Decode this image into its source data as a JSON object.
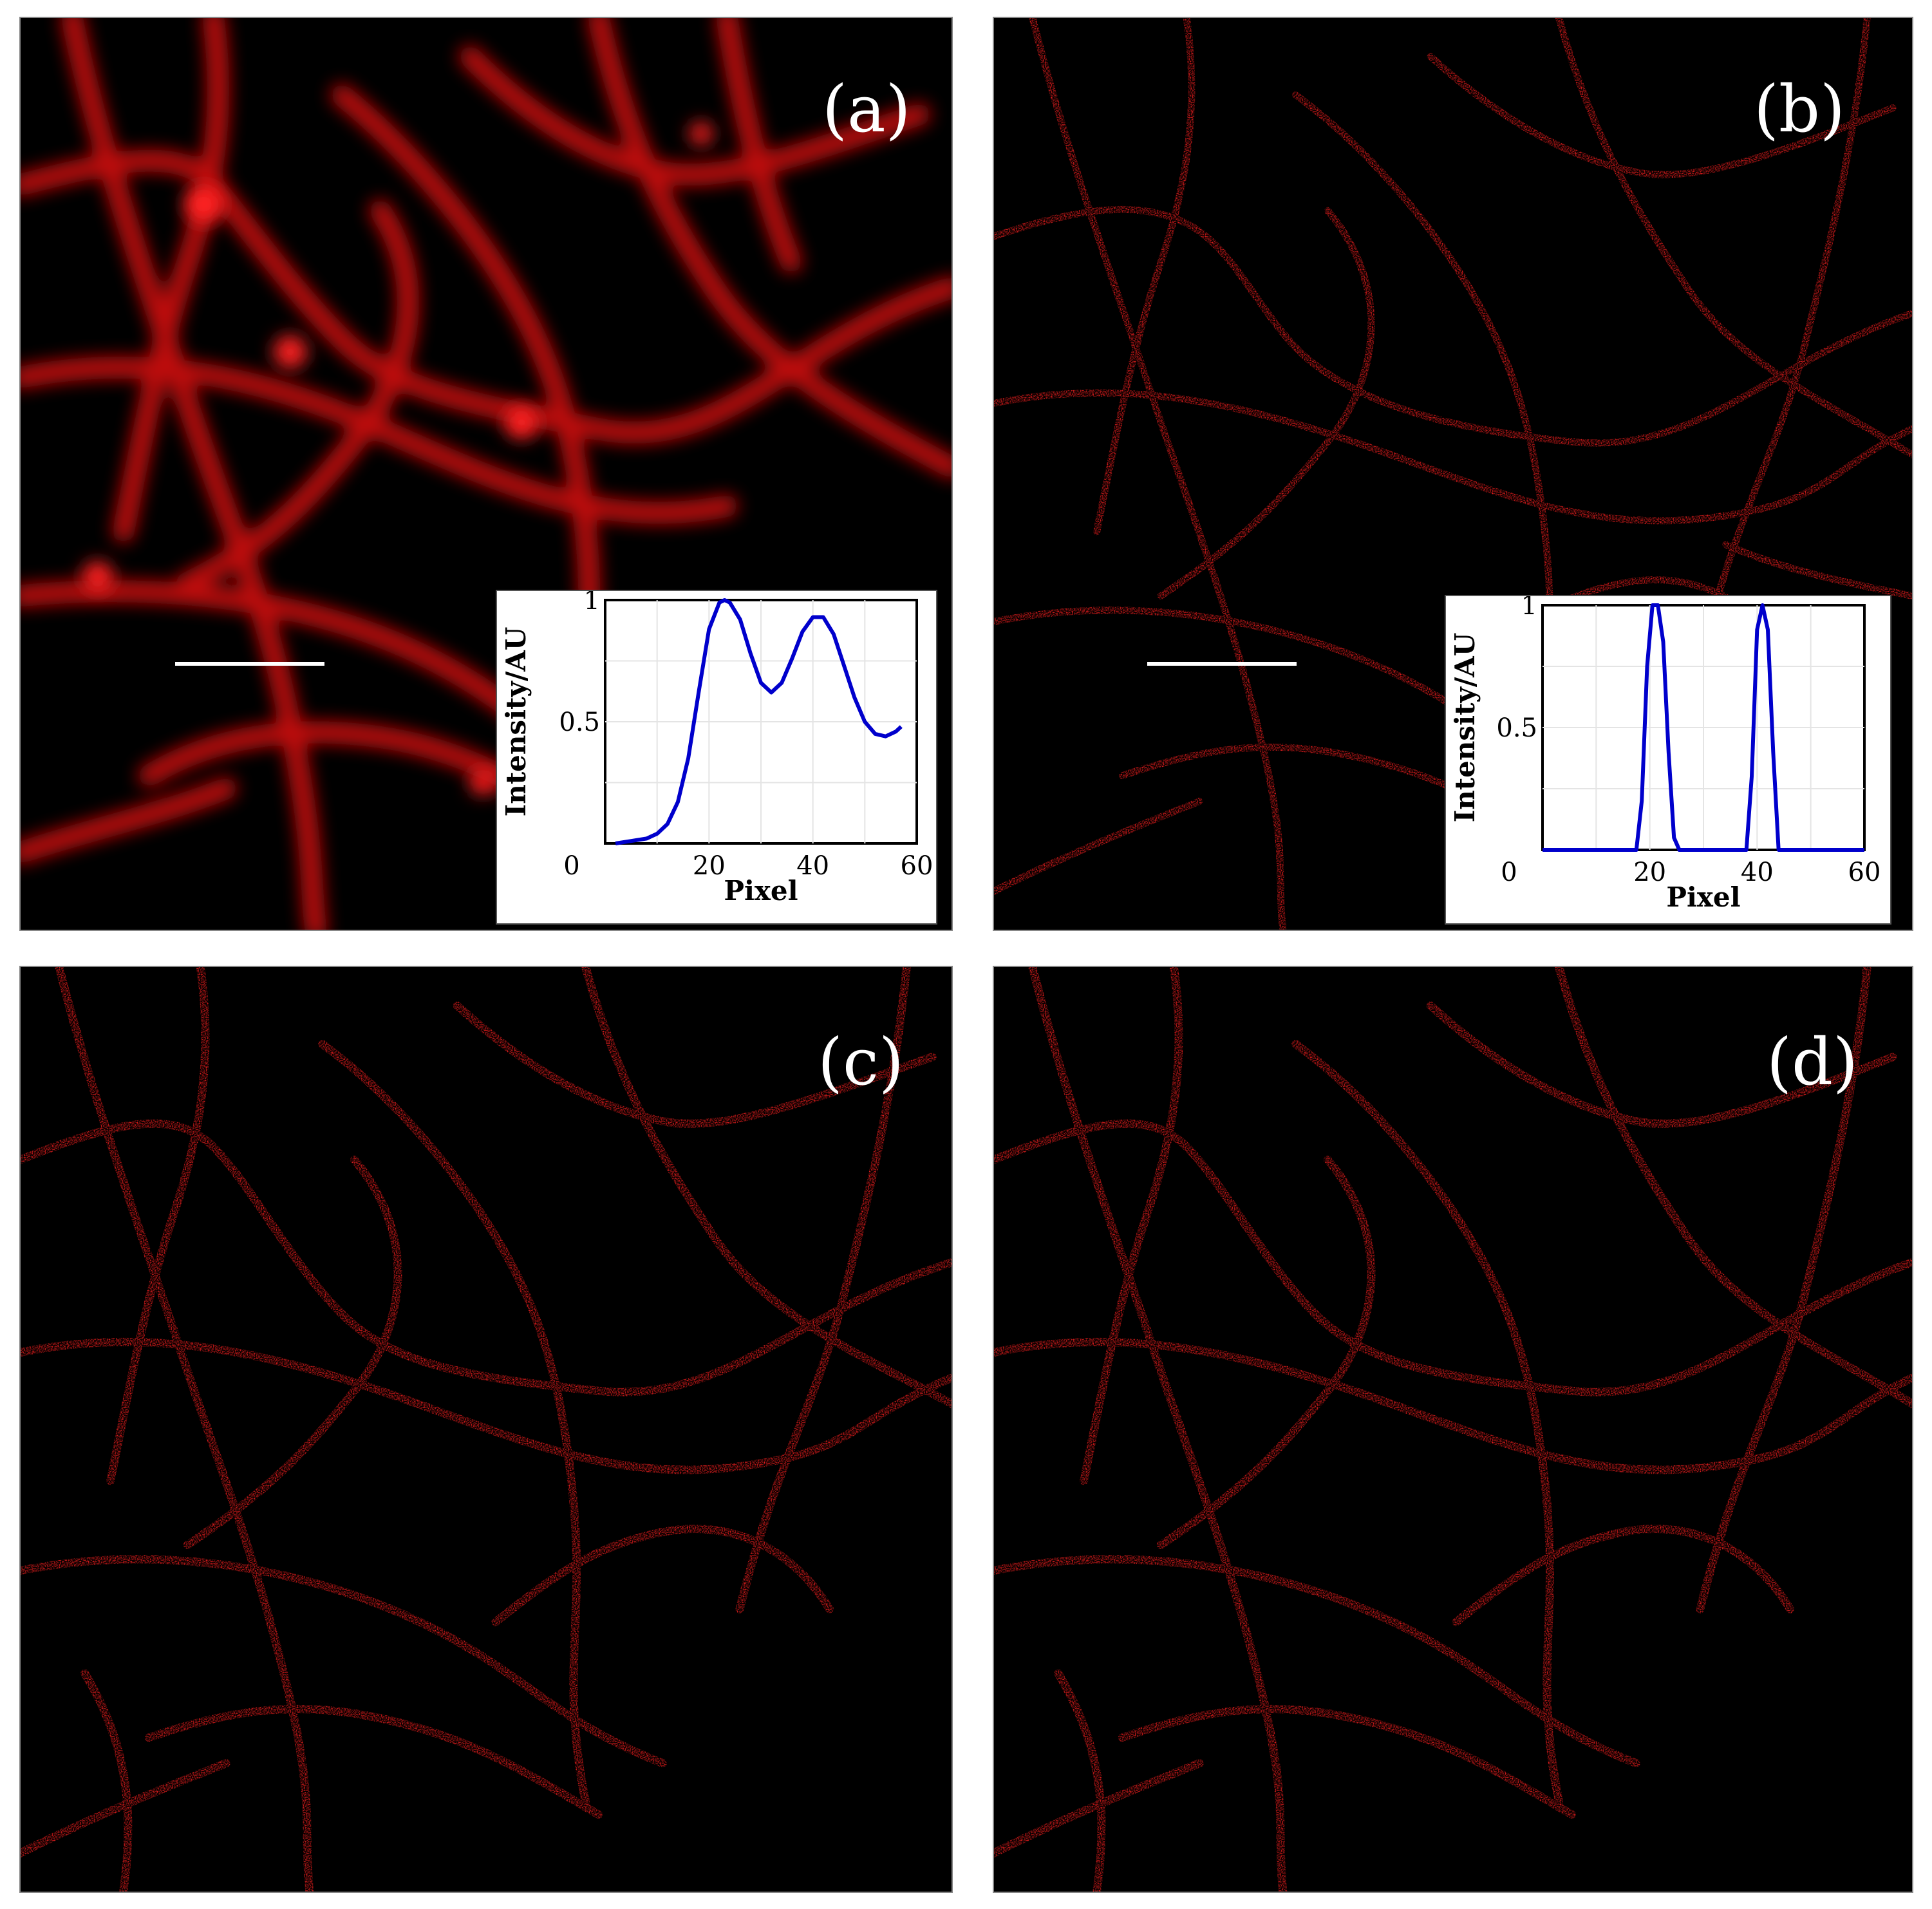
{
  "figure": {
    "panels": [
      {
        "id": "a",
        "label": "(a)",
        "style": "blurred-widefield"
      },
      {
        "id": "b",
        "label": "(b)",
        "style": "super-resolution"
      },
      {
        "id": "c",
        "label": "(c)",
        "style": "super-resolution"
      },
      {
        "id": "d",
        "label": "(d)",
        "style": "super-resolution"
      }
    ],
    "colors": {
      "filament": "#ff1a1a",
      "background": "#000000",
      "profile_line": "#0000cc"
    }
  },
  "chart_data": [
    {
      "type": "line",
      "panel": "a",
      "xlabel": "Pixel",
      "ylabel": "Intensity/AU",
      "xlim": [
        0,
        60
      ],
      "ylim": [
        0,
        1
      ],
      "x_ticks": [
        "0",
        "20",
        "40",
        "60"
      ],
      "y_ticks": [
        "0.5",
        "1"
      ],
      "x": [
        2,
        5,
        8,
        10,
        12,
        14,
        16,
        18,
        20,
        22,
        23,
        24,
        26,
        28,
        30,
        32,
        34,
        36,
        38,
        40,
        42,
        44,
        46,
        48,
        50,
        52,
        54,
        56,
        57
      ],
      "y": [
        0.0,
        0.01,
        0.02,
        0.04,
        0.08,
        0.17,
        0.35,
        0.62,
        0.88,
        0.99,
        1.0,
        0.99,
        0.92,
        0.78,
        0.66,
        0.62,
        0.66,
        0.76,
        0.87,
        0.93,
        0.93,
        0.86,
        0.73,
        0.6,
        0.5,
        0.45,
        0.44,
        0.46,
        0.48
      ]
    },
    {
      "type": "line",
      "panel": "b",
      "xlabel": "Pixel",
      "ylabel": "Intensity/AU",
      "xlim": [
        0,
        60
      ],
      "ylim": [
        0,
        1
      ],
      "x_ticks": [
        "0",
        "20",
        "40",
        "60"
      ],
      "y_ticks": [
        "0.5",
        "1"
      ],
      "x": [
        0,
        17.5,
        18.5,
        19.5,
        20.5,
        21.5,
        22.5,
        23.5,
        24.5,
        25.5,
        38,
        39,
        40,
        41,
        42,
        43,
        44,
        60
      ],
      "y": [
        0,
        0,
        0.2,
        0.75,
        1.0,
        1.0,
        0.85,
        0.4,
        0.05,
        0,
        0,
        0.3,
        0.9,
        1.0,
        0.9,
        0.4,
        0,
        0
      ]
    }
  ]
}
